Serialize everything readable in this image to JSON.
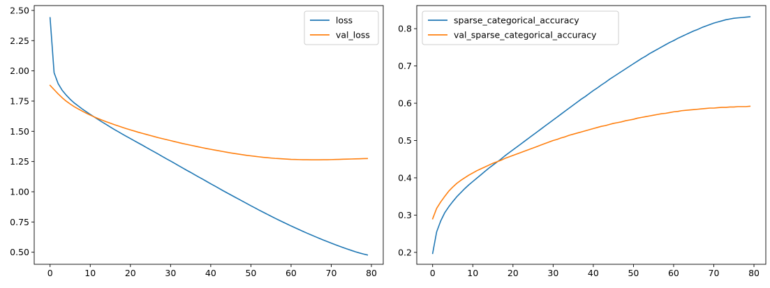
{
  "chart_data": [
    {
      "type": "line",
      "title": "",
      "xlabel": "",
      "ylabel": "",
      "xlim": [
        -3.95,
        82.95
      ],
      "ylim": [
        0.4,
        2.54
      ],
      "xticks": [
        0,
        10,
        20,
        30,
        40,
        50,
        60,
        70,
        80
      ],
      "yticks": [
        0.5,
        0.75,
        1.0,
        1.25,
        1.5,
        1.75,
        2.0,
        2.25,
        2.5
      ],
      "ytick_format": 2,
      "grid": false,
      "legend": "top-right",
      "series": [
        {
          "name": "loss",
          "color": "#1f77b4",
          "values": [
            2.44,
            1.985,
            1.895,
            1.84,
            1.8,
            1.765,
            1.735,
            1.71,
            1.685,
            1.662,
            1.64,
            1.618,
            1.597,
            1.576,
            1.556,
            1.535,
            1.515,
            1.496,
            1.477,
            1.458,
            1.44,
            1.421,
            1.403,
            1.385,
            1.366,
            1.347,
            1.329,
            1.31,
            1.291,
            1.272,
            1.254,
            1.235,
            1.216,
            1.197,
            1.178,
            1.16,
            1.141,
            1.122,
            1.104,
            1.085,
            1.066,
            1.048,
            1.029,
            1.01,
            0.992,
            0.974,
            0.956,
            0.938,
            0.92,
            0.902,
            0.884,
            0.867,
            0.849,
            0.832,
            0.815,
            0.798,
            0.781,
            0.765,
            0.749,
            0.733,
            0.717,
            0.702,
            0.687,
            0.672,
            0.657,
            0.643,
            0.629,
            0.615,
            0.601,
            0.588,
            0.575,
            0.562,
            0.55,
            0.538,
            0.526,
            0.515,
            0.504,
            0.494,
            0.485,
            0.477
          ]
        },
        {
          "name": "val_loss",
          "color": "#ff7f0e",
          "values": [
            1.88,
            1.845,
            1.81,
            1.778,
            1.75,
            1.726,
            1.704,
            1.685,
            1.667,
            1.65,
            1.634,
            1.619,
            1.605,
            1.592,
            1.579,
            1.567,
            1.555,
            1.544,
            1.533,
            1.522,
            1.512,
            1.502,
            1.492,
            1.483,
            1.474,
            1.465,
            1.456,
            1.447,
            1.439,
            1.431,
            1.423,
            1.415,
            1.407,
            1.399,
            1.392,
            1.385,
            1.378,
            1.371,
            1.364,
            1.357,
            1.351,
            1.345,
            1.339,
            1.333,
            1.327,
            1.321,
            1.316,
            1.311,
            1.306,
            1.301,
            1.297,
            1.293,
            1.289,
            1.285,
            1.282,
            1.279,
            1.276,
            1.274,
            1.272,
            1.27,
            1.268,
            1.267,
            1.266,
            1.265,
            1.265,
            1.264,
            1.264,
            1.264,
            1.265,
            1.265,
            1.266,
            1.267,
            1.268,
            1.269,
            1.27,
            1.271,
            1.272,
            1.273,
            1.274,
            1.275
          ]
        }
      ]
    },
    {
      "type": "line",
      "title": "",
      "xlabel": "",
      "ylabel": "",
      "xlim": [
        -3.95,
        82.95
      ],
      "ylim": [
        0.168,
        0.862
      ],
      "xticks": [
        0,
        10,
        20,
        30,
        40,
        50,
        60,
        70,
        80
      ],
      "yticks": [
        0.2,
        0.3,
        0.4,
        0.5,
        0.6,
        0.7,
        0.8
      ],
      "ytick_format": 1,
      "grid": false,
      "legend": "top-left",
      "series": [
        {
          "name": "sparse_categorical_accuracy",
          "color": "#1f77b4",
          "values": [
            0.197,
            0.255,
            0.284,
            0.306,
            0.322,
            0.336,
            0.349,
            0.36,
            0.371,
            0.381,
            0.39,
            0.399,
            0.408,
            0.417,
            0.426,
            0.434,
            0.442,
            0.45,
            0.459,
            0.467,
            0.475,
            0.483,
            0.491,
            0.499,
            0.507,
            0.515,
            0.523,
            0.531,
            0.539,
            0.547,
            0.555,
            0.563,
            0.571,
            0.579,
            0.587,
            0.595,
            0.603,
            0.611,
            0.618,
            0.626,
            0.634,
            0.641,
            0.649,
            0.656,
            0.664,
            0.671,
            0.678,
            0.685,
            0.692,
            0.699,
            0.706,
            0.713,
            0.72,
            0.726,
            0.733,
            0.739,
            0.745,
            0.751,
            0.757,
            0.763,
            0.768,
            0.774,
            0.779,
            0.784,
            0.789,
            0.794,
            0.798,
            0.803,
            0.807,
            0.811,
            0.815,
            0.818,
            0.821,
            0.824,
            0.826,
            0.828,
            0.829,
            0.83,
            0.831,
            0.832
          ]
        },
        {
          "name": "val_sparse_categorical_accuracy",
          "color": "#ff7f0e",
          "values": [
            0.29,
            0.318,
            0.335,
            0.35,
            0.364,
            0.375,
            0.385,
            0.393,
            0.4,
            0.407,
            0.413,
            0.419,
            0.424,
            0.429,
            0.434,
            0.439,
            0.443,
            0.447,
            0.452,
            0.456,
            0.46,
            0.464,
            0.468,
            0.472,
            0.476,
            0.48,
            0.484,
            0.488,
            0.492,
            0.496,
            0.5,
            0.503,
            0.507,
            0.51,
            0.514,
            0.517,
            0.52,
            0.523,
            0.526,
            0.529,
            0.532,
            0.535,
            0.538,
            0.54,
            0.543,
            0.546,
            0.548,
            0.55,
            0.553,
            0.555,
            0.557,
            0.56,
            0.562,
            0.564,
            0.566,
            0.568,
            0.57,
            0.572,
            0.573,
            0.575,
            0.577,
            0.578,
            0.58,
            0.581,
            0.582,
            0.583,
            0.584,
            0.585,
            0.586,
            0.587,
            0.587,
            0.588,
            0.589,
            0.589,
            0.59,
            0.59,
            0.591,
            0.591,
            0.591,
            0.592
          ]
        }
      ]
    }
  ]
}
